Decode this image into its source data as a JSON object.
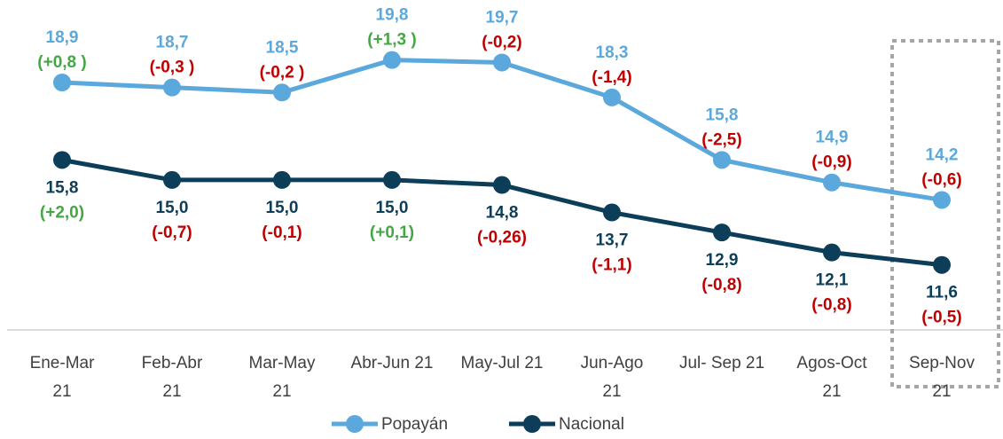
{
  "chart_data": {
    "type": "line",
    "categories": [
      "Ene-Mar\n21",
      "Feb-Abr\n21",
      "Mar-May\n21",
      "Abr-Jun 21",
      "May-Jul 21",
      "Jun-Ago\n21",
      "Jul- Sep 21",
      "Agos-Oct\n21",
      "Sep-Nov\n21"
    ],
    "series": [
      {
        "name": "Popayán",
        "color": "#5ba8dc",
        "values": [
          18.9,
          18.7,
          18.5,
          19.8,
          19.7,
          18.3,
          15.8,
          14.9,
          14.2
        ],
        "value_labels": [
          "18,9",
          "18,7",
          "18,5",
          "19,8",
          "19,7",
          "18,3",
          "15,8",
          "14,9",
          "14,2"
        ],
        "changes": [
          "(+0,8 )",
          "(-0,3 )",
          "(-0,2 )",
          "(+1,3 )",
          "(-0,2)",
          "(-1,4)",
          "(-2,5)",
          "(-0,9)",
          "(-0,6)"
        ]
      },
      {
        "name": "Nacional",
        "color": "#0c3d59",
        "values": [
          15.8,
          15.0,
          15.0,
          15.0,
          14.8,
          13.7,
          12.9,
          12.1,
          11.6
        ],
        "value_labels": [
          "15,8",
          "15,0",
          "15,0",
          "15,0",
          "14,8",
          "13,7",
          "12,9",
          "12,1",
          "11,6"
        ],
        "changes": [
          "(+2,0)",
          "(-0,7)",
          "(-0,1)",
          "(+0,1)",
          "(-0,26)",
          "(-1,1)",
          "(-0,8)",
          "(-0,8)",
          "(-0,5)"
        ]
      }
    ],
    "ylim": [
      9,
      22.2
    ],
    "legend": "bottom"
  }
}
